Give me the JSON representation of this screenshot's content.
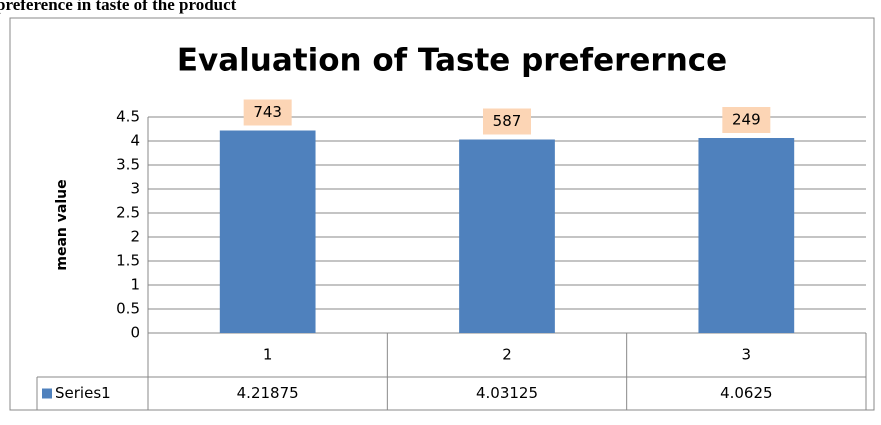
{
  "caption": "preference in taste of the product",
  "chart_data": {
    "type": "bar",
    "title": "Evaluation of Taste preferernce",
    "y_label": "mean value",
    "categories": [
      "1",
      "2",
      "3"
    ],
    "series": [
      {
        "name": "Series1",
        "color": "#4f81bd",
        "values": [
          4.21875,
          4.03125,
          4.0625
        ]
      }
    ],
    "annotations": [
      "743",
      "587",
      "249"
    ],
    "ylim": [
      0,
      4.5
    ],
    "yticks": [
      0,
      0.5,
      1,
      1.5,
      2,
      2.5,
      3,
      3.5,
      4,
      4.5
    ],
    "grid": true
  }
}
